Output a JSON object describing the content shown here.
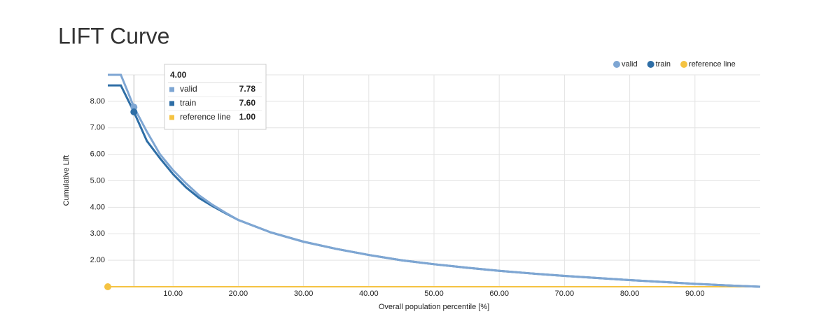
{
  "chart_data": {
    "type": "line",
    "title": "LIFT Curve",
    "x_label": "Overall population percentile [%]",
    "y_label": "Cumulative Lift",
    "x": [
      0,
      1,
      2,
      3,
      4,
      6,
      8,
      10,
      12,
      14,
      16,
      18,
      20,
      25,
      30,
      35,
      40,
      45,
      50,
      55,
      60,
      65,
      70,
      75,
      80,
      85,
      90,
      95,
      100
    ],
    "series": [
      {
        "name": "valid",
        "color": "#7ea6d3",
        "values": [
          9.0,
          9.0,
          9.0,
          8.4,
          7.78,
          6.85,
          6.0,
          5.4,
          4.9,
          4.45,
          4.1,
          3.8,
          3.52,
          3.05,
          2.7,
          2.43,
          2.2,
          2.0,
          1.85,
          1.72,
          1.6,
          1.5,
          1.41,
          1.33,
          1.25,
          1.18,
          1.11,
          1.05,
          1.0
        ]
      },
      {
        "name": "train",
        "color": "#2e6ea6",
        "values": [
          8.6,
          8.6,
          8.6,
          8.1,
          7.6,
          6.5,
          5.85,
          5.25,
          4.75,
          4.35,
          4.05,
          3.78,
          3.52,
          3.05,
          2.7,
          2.43,
          2.2,
          2.0,
          1.85,
          1.72,
          1.6,
          1.5,
          1.41,
          1.33,
          1.25,
          1.18,
          1.11,
          1.05,
          1.0
        ]
      },
      {
        "name": "reference line",
        "color": "#f5c342",
        "values": [
          1,
          1,
          1,
          1,
          1,
          1,
          1,
          1,
          1,
          1,
          1,
          1,
          1,
          1,
          1,
          1,
          1,
          1,
          1,
          1,
          1,
          1,
          1,
          1,
          1,
          1,
          1,
          1,
          1
        ]
      }
    ],
    "xlim": [
      0,
      100
    ],
    "xticks": [
      {
        "value": 10,
        "label": "10.00"
      },
      {
        "value": 20,
        "label": "20.00"
      },
      {
        "value": 30,
        "label": "30.00"
      },
      {
        "value": 40,
        "label": "40.00"
      },
      {
        "value": 50,
        "label": "50.00"
      },
      {
        "value": 60,
        "label": "60.00"
      },
      {
        "value": 70,
        "label": "70.00"
      },
      {
        "value": 80,
        "label": "80.00"
      },
      {
        "value": 90,
        "label": "90.00"
      }
    ],
    "ylim": [
      1,
      9
    ],
    "yticks": [
      {
        "value": 2,
        "label": "2.00"
      },
      {
        "value": 3,
        "label": "3.00"
      },
      {
        "value": 4,
        "label": "4.00"
      },
      {
        "value": 5,
        "label": "5.00"
      },
      {
        "value": 6,
        "label": "6.00"
      },
      {
        "value": 7,
        "label": "7.00"
      },
      {
        "value": 8,
        "label": "8.00"
      }
    ],
    "grid": true,
    "legend": "top-right",
    "tooltip": {
      "x": {
        "value": 4,
        "label": "4.00"
      },
      "values": [
        {
          "value": 7.78,
          "label": "7.78"
        },
        {
          "value": 7.6,
          "label": "7.60"
        },
        {
          "value": 1.0,
          "label": "1.00"
        }
      ]
    }
  }
}
